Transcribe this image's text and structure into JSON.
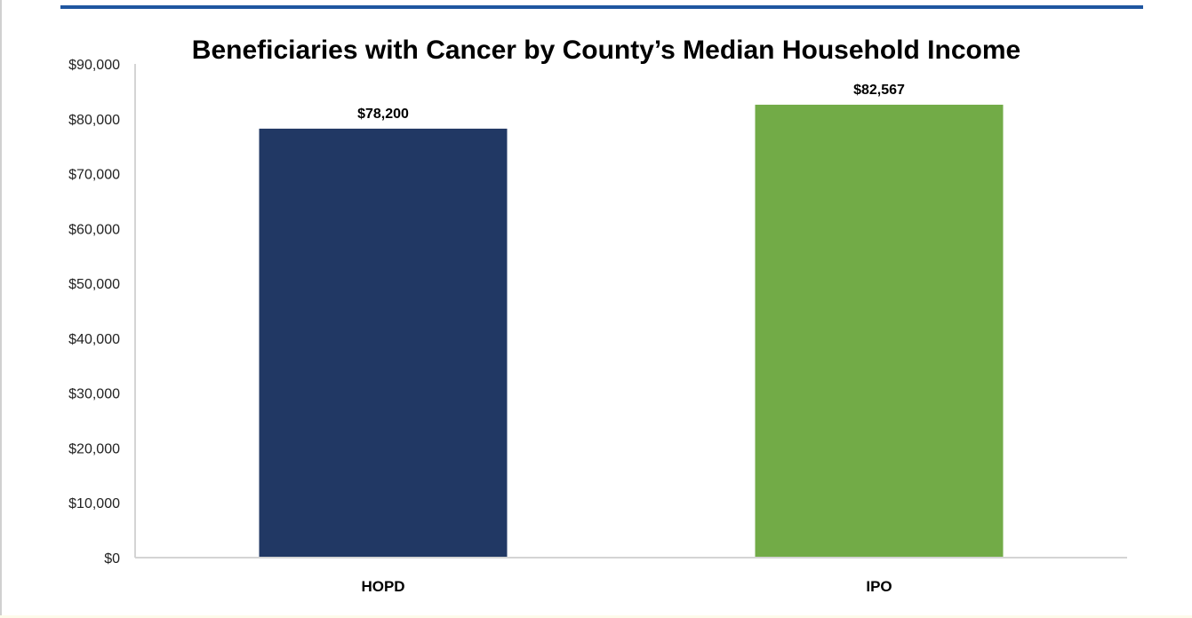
{
  "chart_data": {
    "type": "bar",
    "title": "Beneficiaries with Cancer by County’s Median Household Income",
    "categories": [
      "HOPD",
      "IPO"
    ],
    "values": [
      78200,
      82567
    ],
    "data_labels": [
      "$78,200",
      "$82,567"
    ],
    "colors": [
      "#213864",
      "#72ab47"
    ],
    "ylim": [
      0,
      90000
    ],
    "yticks": [
      0,
      10000,
      20000,
      30000,
      40000,
      50000,
      60000,
      70000,
      80000,
      90000
    ],
    "ytick_labels": [
      "$0",
      "$10,000",
      "$20,000",
      "$30,000",
      "$40,000",
      "$50,000",
      "$60,000",
      "$70,000",
      "$80,000",
      "$90,000"
    ],
    "xlabel": "",
    "ylabel": "",
    "grid": false,
    "legend": "none",
    "accent_color": "#1f56a0"
  }
}
